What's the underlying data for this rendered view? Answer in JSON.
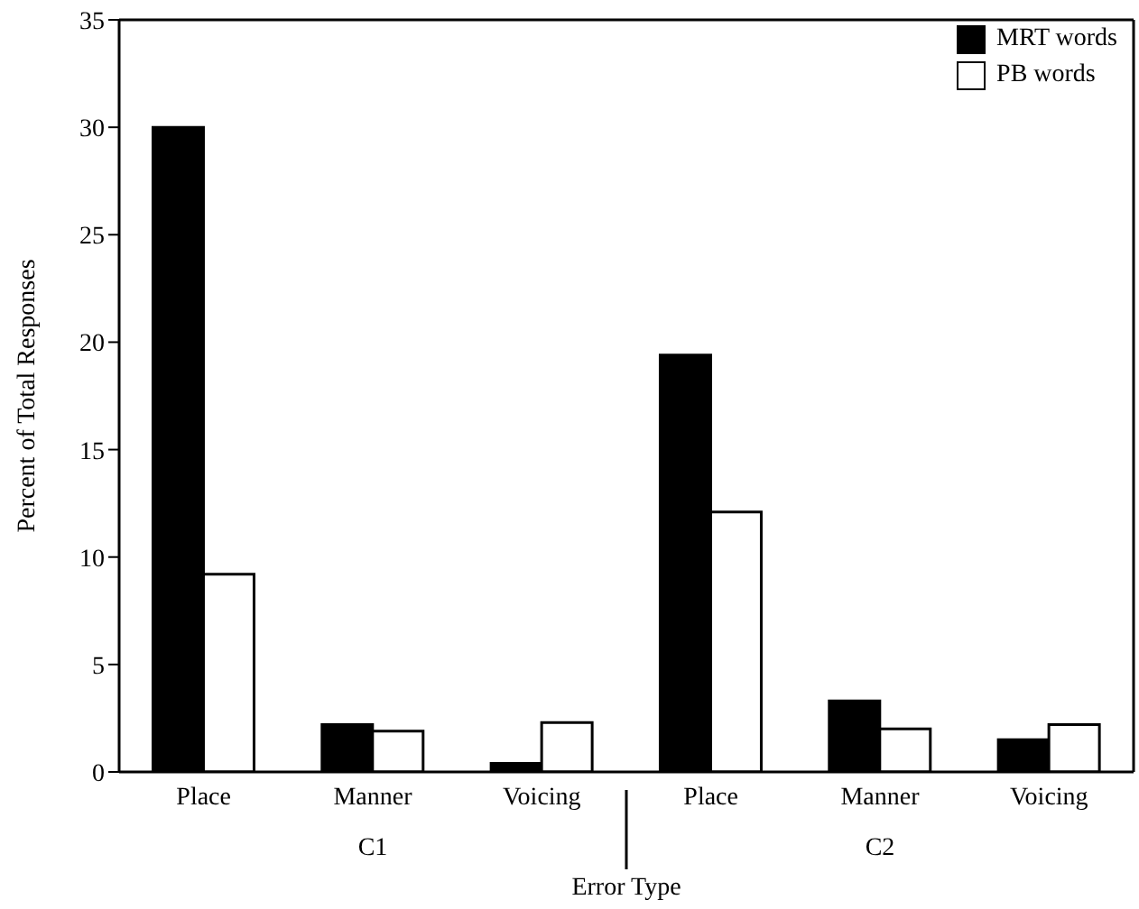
{
  "chart_data": {
    "type": "bar",
    "xlabel": "Error Type",
    "ylabel": "Percent of Total Responses",
    "categories": [
      "Place",
      "Manner",
      "Voicing",
      "Place",
      "Manner",
      "Voicing"
    ],
    "series": [
      {
        "name": "MRT words",
        "color": "#000000",
        "values": [
          30.0,
          2.2,
          0.4,
          19.4,
          3.3,
          1.5
        ]
      },
      {
        "name": "PB words",
        "color": "#ffffff",
        "values": [
          9.2,
          1.9,
          2.3,
          12.1,
          2.0,
          2.2
        ]
      }
    ],
    "annotations": [
      "C1",
      "C2"
    ],
    "ylim": [
      0,
      35
    ],
    "yticks": [
      0,
      5,
      10,
      15,
      20,
      25,
      30,
      35
    ],
    "legend": "top right"
  }
}
